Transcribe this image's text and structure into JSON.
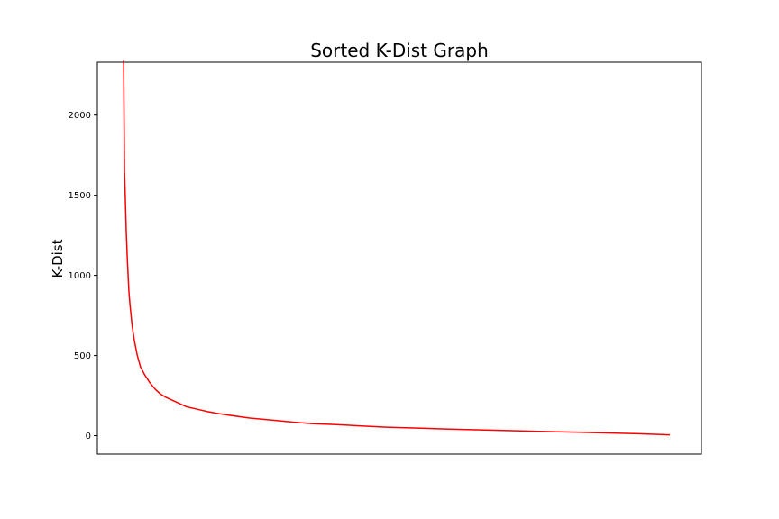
{
  "chart_data": {
    "type": "line",
    "title": "Sorted K-Dist Graph",
    "xlabel": "",
    "ylabel": "K-Dist",
    "grid": false,
    "legend": "none",
    "xlim": [
      -2.5,
      55
    ],
    "ylim": [
      -115,
      2330
    ],
    "x_ticks_visible": false,
    "yticks": [
      0,
      500,
      1000,
      1500,
      2000
    ],
    "ytick_labels": [
      "0",
      "500",
      "1000",
      "1500",
      "2000"
    ],
    "series": [
      {
        "color": "#ff0000",
        "x": [
          0,
          0.08,
          0.15,
          0.25,
          0.35,
          0.5,
          0.6,
          0.8,
          1.0,
          1.3,
          1.6,
          2.0,
          2.5,
          3.0,
          3.5,
          4.0,
          5.0,
          6.0,
          7.0,
          8.0,
          9.0,
          10.0,
          12.0,
          14.0,
          16.0,
          18.0,
          20.0,
          22.0,
          25.0,
          28.0,
          31.0,
          34.0,
          37.0,
          40.0,
          43.0,
          46.0,
          49.0,
          52.0
        ],
        "values": [
          2340,
          1650,
          1500,
          1270,
          1100,
          900,
          820,
          690,
          600,
          500,
          430,
          380,
          330,
          290,
          260,
          240,
          210,
          180,
          165,
          150,
          138,
          128,
          110,
          98,
          85,
          75,
          70,
          63,
          53,
          47,
          41,
          36,
          31,
          26,
          22,
          17,
          12,
          5
        ]
      }
    ]
  }
}
